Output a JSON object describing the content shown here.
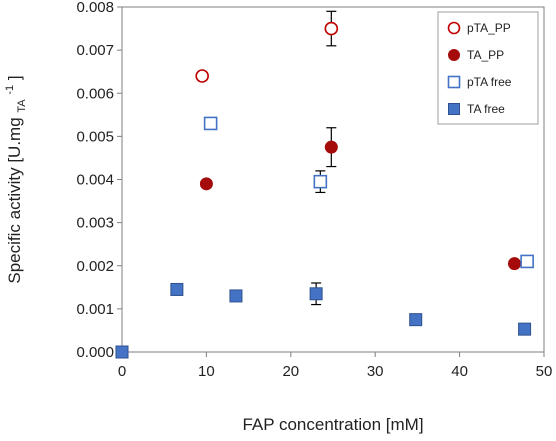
{
  "chart_data": {
    "type": "scatter",
    "title": "",
    "xlabel": "FAP concentration [mM]",
    "ylabel_parts": {
      "main": "Specific activity [U.mg",
      "sub": "TA",
      "sup": "-1",
      "end": "]"
    },
    "xlim": [
      0,
      50
    ],
    "ylim": [
      0,
      0.008
    ],
    "xticks": [
      "0",
      "10",
      "20",
      "30",
      "40",
      "50"
    ],
    "yticks": [
      "0.000",
      "0.001",
      "0.002",
      "0.003",
      "0.004",
      "0.005",
      "0.006",
      "0.007",
      "0.008"
    ],
    "grid": false,
    "legend_position": "top-right",
    "series": [
      {
        "name": "pTA_PP",
        "marker": "circle-open",
        "color": "#C00000",
        "points": [
          {
            "x": 9.5,
            "y": 0.0064
          },
          {
            "x": 24.8,
            "y": 0.0075,
            "err": 0.0004
          }
        ]
      },
      {
        "name": "TA_PP",
        "marker": "circle-filled",
        "color": "#A50B0B",
        "points": [
          {
            "x": 10.0,
            "y": 0.0039
          },
          {
            "x": 24.8,
            "y": 0.00475,
            "err": 0.00045
          },
          {
            "x": 46.5,
            "y": 0.00205
          }
        ]
      },
      {
        "name": "pTA free",
        "marker": "square-open",
        "color": "#4472C4",
        "points": [
          {
            "x": 10.5,
            "y": 0.0053
          },
          {
            "x": 23.5,
            "y": 0.00395,
            "err": 0.00025
          },
          {
            "x": 48.0,
            "y": 0.0021
          }
        ]
      },
      {
        "name": "TA free",
        "marker": "square-filled",
        "color": "#4472C4",
        "points": [
          {
            "x": 0.0,
            "y": 0.0
          },
          {
            "x": 6.5,
            "y": 0.00145
          },
          {
            "x": 13.5,
            "y": 0.0013
          },
          {
            "x": 23.0,
            "y": 0.00135,
            "err": 0.00025
          },
          {
            "x": 34.8,
            "y": 0.00075
          },
          {
            "x": 47.7,
            "y": 0.00053
          }
        ]
      }
    ]
  }
}
